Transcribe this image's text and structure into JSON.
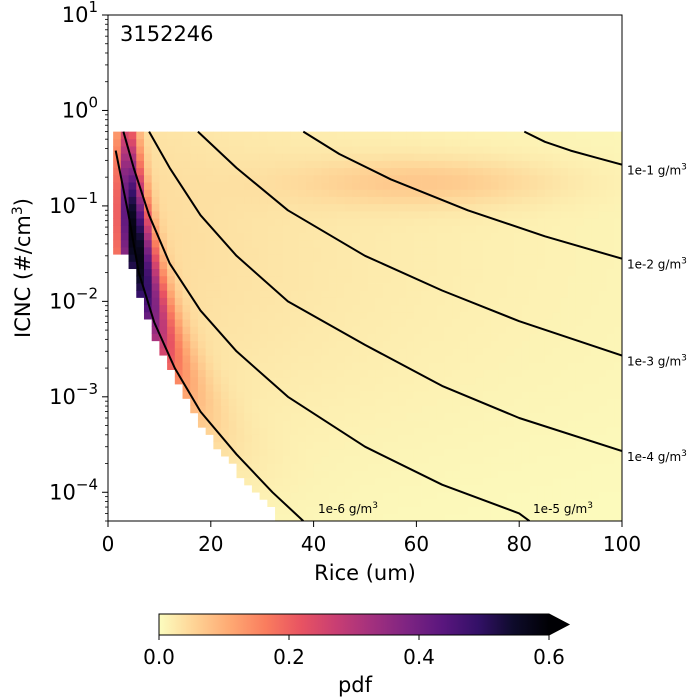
{
  "chart_data": {
    "type": "heatmap",
    "title": "",
    "annotation": "3152246",
    "xlabel": "Rice (um)",
    "ylabel": "ICNC (#/cm3)",
    "ylabel_parts": {
      "main": "ICNC (#/cm",
      "sup": "3",
      "end": ")"
    },
    "xlim": [
      0,
      100
    ],
    "ylim": [
      5e-05,
      10
    ],
    "yscale": "log",
    "x_ticks": [
      {
        "value": 0,
        "label": "0"
      },
      {
        "value": 20,
        "label": "20"
      },
      {
        "value": 40,
        "label": "40"
      },
      {
        "value": 60,
        "label": "60"
      },
      {
        "value": 80,
        "label": "80"
      },
      {
        "value": 100,
        "label": "100"
      }
    ],
    "y_ticks": [
      {
        "value": 0.0001,
        "base": "10",
        "exp": "−4"
      },
      {
        "value": 0.001,
        "base": "10",
        "exp": "−3"
      },
      {
        "value": 0.01,
        "base": "10",
        "exp": "−2"
      },
      {
        "value": 0.1,
        "base": "10",
        "exp": "−1"
      },
      {
        "value": 1,
        "base": "10",
        "exp": "0"
      },
      {
        "value": 10,
        "base": "10",
        "exp": "1"
      }
    ],
    "data_region": {
      "x": [
        1,
        100
      ],
      "y_max": 0.6
    },
    "density_peak": {
      "x": 5,
      "y": 0.08,
      "value": 0.6
    },
    "iwc_contours": [
      {
        "label": "1e-6 g/m",
        "sup": "3",
        "x": [
          1.5,
          4,
          6,
          9,
          13,
          18,
          25,
          32,
          38
        ],
        "y": [
          0.38,
          0.08,
          0.02,
          0.006,
          0.002,
          0.0007,
          0.00025,
          0.0001,
          5e-05
        ]
      },
      {
        "label": "1e-5 g/m",
        "sup": "3",
        "x": [
          3,
          5,
          8,
          12,
          18,
          25,
          35,
          50,
          65,
          80,
          82
        ],
        "y": [
          0.6,
          0.25,
          0.08,
          0.025,
          0.008,
          0.003,
          0.001,
          0.0003,
          0.00012,
          6e-05,
          5e-05
        ]
      },
      {
        "label": "1e-4 g/m",
        "sup": "3",
        "x": [
          8,
          12,
          18,
          25,
          35,
          50,
          65,
          80,
          100
        ],
        "y": [
          0.6,
          0.25,
          0.08,
          0.03,
          0.01,
          0.0035,
          0.0013,
          0.0006,
          0.00027
        ]
      },
      {
        "label": "1e-3 g/m",
        "sup": "3",
        "x": [
          17.5,
          25,
          35,
          50,
          65,
          80,
          100
        ],
        "y": [
          0.6,
          0.25,
          0.09,
          0.03,
          0.013,
          0.0062,
          0.0027
        ]
      },
      {
        "label": "1e-2 g/m",
        "sup": "3",
        "x": [
          38,
          45,
          55,
          70,
          85,
          100
        ],
        "y": [
          0.6,
          0.35,
          0.19,
          0.09,
          0.048,
          0.028
        ]
      },
      {
        "label": "1e-1 g/m",
        "sup": "3",
        "x": [
          81,
          85,
          90,
          95,
          100
        ],
        "y": [
          0.6,
          0.47,
          0.38,
          0.32,
          0.27
        ]
      }
    ],
    "colorbar": {
      "label": "pdf",
      "min": 0,
      "max": 0.6,
      "extend": "max",
      "colormap": "magma_r",
      "ticks": [
        {
          "value": 0,
          "label": "0.0"
        },
        {
          "value": 0.2,
          "label": "0.2"
        },
        {
          "value": 0.4,
          "label": "0.4"
        },
        {
          "value": 0.6,
          "label": "0.6"
        }
      ],
      "colors": [
        "#fcfdbf",
        "#fed395",
        "#fea973",
        "#fa7d5e",
        "#e85362",
        "#c83e73",
        "#a3307e",
        "#7e2482",
        "#5a167e",
        "#331067",
        "#0e0b2b",
        "#000004"
      ]
    }
  }
}
